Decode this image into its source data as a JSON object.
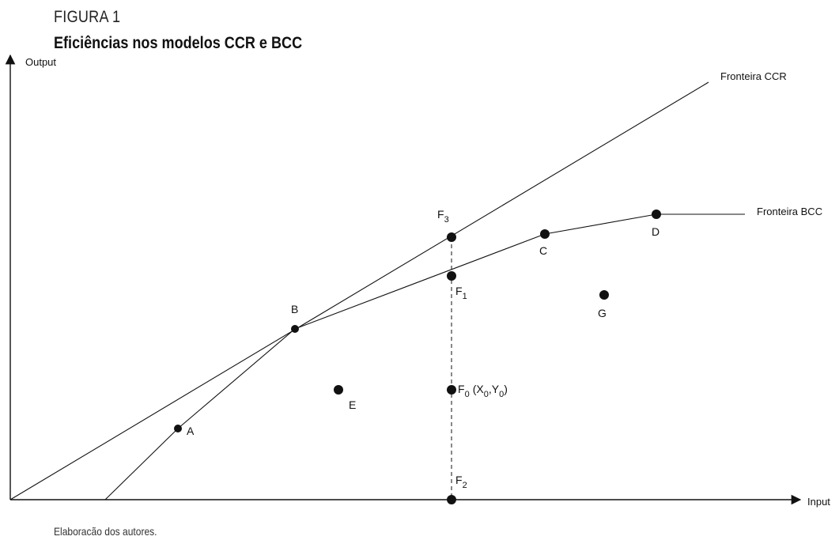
{
  "figure": {
    "label": "FIGURA 1",
    "title": "Eficiências nos modelos CCR e BCC",
    "source": "Elaboracão dos autores."
  },
  "axes": {
    "x_label": "Input",
    "y_label": "Output"
  },
  "frontiers": {
    "ccr_label": "Fronteira CCR",
    "bcc_label": "Fronteira BCC"
  },
  "points": {
    "A": "A",
    "B": "B",
    "C": "C",
    "D": "D",
    "E": "E",
    "G": "G"
  },
  "projections": {
    "F3": {
      "base": "F",
      "sub": "3"
    },
    "F1": {
      "base": "F",
      "sub": "1"
    },
    "F2": {
      "base": "F",
      "sub": "2"
    },
    "F0": {
      "base": "F",
      "sub": "0",
      "coord_x_base": "X",
      "coord_x_sub": "0",
      "coord_y_base": "Y",
      "coord_y_sub": "0"
    }
  },
  "colors": {
    "ink": "#111111",
    "background": "#ffffff"
  }
}
